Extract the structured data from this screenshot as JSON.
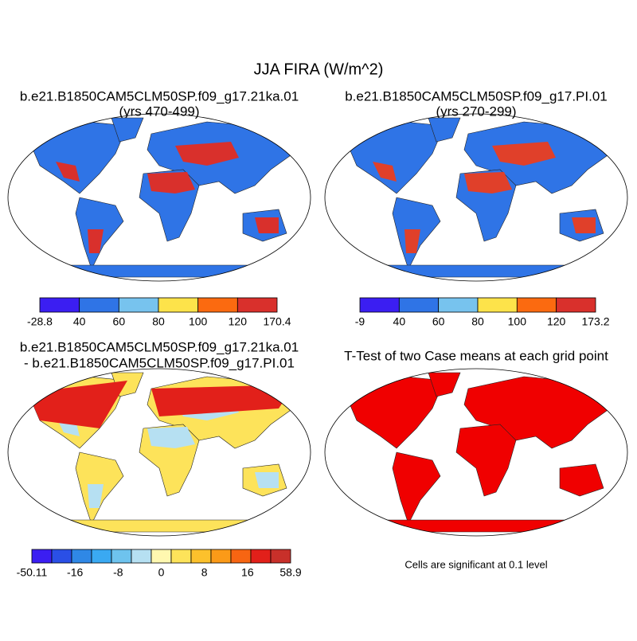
{
  "title": "JJA FIRA (W/m^2)",
  "panels": [
    {
      "title": "b.e21.B1850CAM5CLM50SP.f09_g17.21ka.01",
      "subtitle": "(yrs 470-499)",
      "colorbar": {
        "colors": [
          "#3b1ef2",
          "#2f74e6",
          "#77c3ee",
          "#fde34a",
          "#fb6a10",
          "#d9302c"
        ],
        "labels": [
          "-28.8",
          "40",
          "60",
          "80",
          "100",
          "120",
          "170.4"
        ]
      }
    },
    {
      "title": "b.e21.B1850CAM5CLM50SP.f09_g17.PI.01",
      "subtitle": "(yrs 270-299)",
      "colorbar": {
        "colors": [
          "#3b1ef2",
          "#2f74e6",
          "#77c3ee",
          "#fde34a",
          "#fb6a10",
          "#d9302c"
        ],
        "labels": [
          "-9",
          "40",
          "60",
          "80",
          "100",
          "120",
          "173.2"
        ]
      }
    },
    {
      "title": "b.e21.B1850CAM5CLM50SP.f09_g17.21ka.01",
      "subtitle": "- b.e21.B1850CAM5CLM50SP.f09_g17.PI.01",
      "colorbar": {
        "colors": [
          "#3b1ef2",
          "#2a4fe6",
          "#2f88e6",
          "#3aa9f2",
          "#6ec3ee",
          "#b6e0f2",
          "#fff8b0",
          "#fde35a",
          "#fcc12c",
          "#fb9a18",
          "#f76512",
          "#e2201a",
          "#c8302a"
        ],
        "labels": [
          "-50.11",
          "-16",
          "-8",
          "0",
          "8",
          "16",
          "58.9"
        ]
      }
    },
    {
      "title": "T-Test of two Case means at each grid point",
      "note": "Cells are significant at 0.1 level"
    }
  ]
}
